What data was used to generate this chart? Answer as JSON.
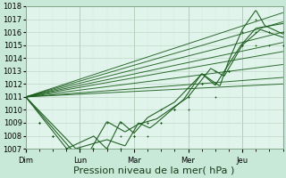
{
  "title": "",
  "xlabel": "Pression niveau de la mer( hPa )",
  "bg_color": "#c8e8d8",
  "plot_bg_color": "#e0f4ec",
  "grid_major_color": "#c0d8c8",
  "grid_minor_color": "#d4eae0",
  "line_color": "#1a5c1a",
  "ylim": [
    1007,
    1018
  ],
  "yticks": [
    1007,
    1008,
    1009,
    1010,
    1011,
    1012,
    1013,
    1014,
    1015,
    1016,
    1017,
    1018
  ],
  "day_labels": [
    "Dim",
    "Lun",
    "Mar",
    "Mer",
    "Jeu"
  ],
  "day_positions": [
    0,
    24,
    48,
    72,
    96
  ],
  "total_hours": 114,
  "xlabel_fontsize": 8,
  "tick_fontsize": 6,
  "straight_ends": [
    1017.5,
    1016.8,
    1016.0,
    1015.2,
    1014.5,
    1013.5,
    1012.5,
    1012.0
  ]
}
